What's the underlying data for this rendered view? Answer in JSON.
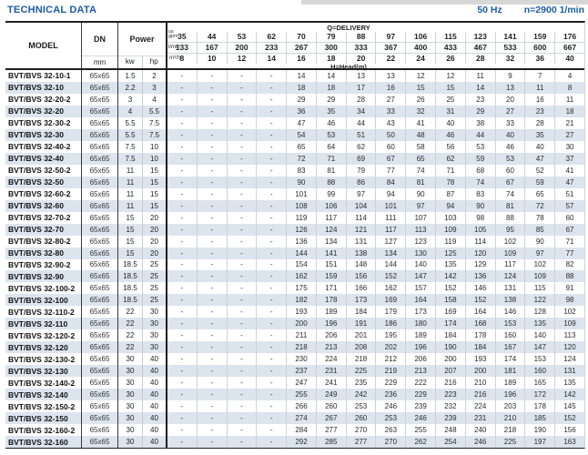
{
  "page": {
    "title": "TECHNICAL DATA",
    "frequency": "50 Hz",
    "speed": "n=2900 1/min"
  },
  "table": {
    "headers": {
      "model": "MODEL",
      "dn": "DN",
      "dn_unit": "mm",
      "power": "Power",
      "kw_unit": "kw",
      "hp_unit": "hp",
      "delivery_title": "Q=DELIVERY",
      "head_title": "H=Head(m)",
      "unit_gpm": "us\ngpm",
      "unit_lmin": "l/min",
      "unit_m3h": "m³/h",
      "gpm": [
        "35",
        "44",
        "53",
        "62",
        "70",
        "79",
        "88",
        "97",
        "106",
        "115",
        "123",
        "141",
        "159",
        "176"
      ],
      "lmin": [
        "133",
        "167",
        "200",
        "233",
        "267",
        "300",
        "333",
        "367",
        "400",
        "433",
        "467",
        "533",
        "600",
        "667"
      ],
      "m3h": [
        "8",
        "10",
        "12",
        "14",
        "16",
        "18",
        "20",
        "22",
        "24",
        "26",
        "28",
        "32",
        "36",
        "40"
      ]
    },
    "rows": [
      {
        "model": "BVT/BVS 32-10-1",
        "dn": "65x65",
        "kw": "1.5",
        "hp": "2",
        "head": [
          "-",
          "-",
          "-",
          "-",
          "14",
          "14",
          "13",
          "13",
          "12",
          "12",
          "11",
          "9",
          "7",
          "4"
        ]
      },
      {
        "model": "BVT/BVS 32-10",
        "dn": "65x65",
        "kw": "2.2",
        "hp": "3",
        "head": [
          "-",
          "-",
          "-",
          "-",
          "18",
          "18",
          "17",
          "16",
          "15",
          "15",
          "14",
          "13",
          "11",
          "8"
        ]
      },
      {
        "model": "BVT/BVS 32-20-2",
        "dn": "65x65",
        "kw": "3",
        "hp": "4",
        "head": [
          "-",
          "-",
          "-",
          "-",
          "29",
          "29",
          "28",
          "27",
          "26",
          "25",
          "23",
          "20",
          "16",
          "11"
        ]
      },
      {
        "model": "BVT/BVS 32-20",
        "dn": "65x65",
        "kw": "4",
        "hp": "5.5",
        "head": [
          "-",
          "-",
          "-",
          "-",
          "36",
          "35",
          "34",
          "33",
          "32",
          "31",
          "29",
          "27",
          "23",
          "18"
        ]
      },
      {
        "model": "BVT/BVS 32-30-2",
        "dn": "65x65",
        "kw": "5.5",
        "hp": "7.5",
        "head": [
          "-",
          "-",
          "-",
          "-",
          "47",
          "46",
          "44",
          "43",
          "41",
          "40",
          "38",
          "33",
          "28",
          "21"
        ]
      },
      {
        "model": "BVT/BVS 32-30",
        "dn": "65x65",
        "kw": "5.5",
        "hp": "7.5",
        "head": [
          "-",
          "-",
          "-",
          "-",
          "54",
          "53",
          "51",
          "50",
          "48",
          "46",
          "44",
          "40",
          "35",
          "27"
        ]
      },
      {
        "model": "BVT/BVS 32-40-2",
        "dn": "65x65",
        "kw": "7.5",
        "hp": "10",
        "head": [
          "-",
          "-",
          "-",
          "-",
          "65",
          "64",
          "62",
          "60",
          "58",
          "56",
          "53",
          "46",
          "40",
          "30"
        ]
      },
      {
        "model": "BVT/BVS 32-40",
        "dn": "65x65",
        "kw": "7.5",
        "hp": "10",
        "head": [
          "-",
          "-",
          "-",
          "-",
          "72",
          "71",
          "69",
          "67",
          "65",
          "62",
          "59",
          "53",
          "47",
          "37"
        ]
      },
      {
        "model": "BVT/BVS 32-50-2",
        "dn": "65x65",
        "kw": "11",
        "hp": "15",
        "head": [
          "-",
          "-",
          "-",
          "-",
          "83",
          "81",
          "79",
          "77",
          "74",
          "71",
          "68",
          "60",
          "52",
          "41"
        ]
      },
      {
        "model": "BVT/BVS 32-50",
        "dn": "65x65",
        "kw": "11",
        "hp": "15",
        "head": [
          "-",
          "-",
          "-",
          "-",
          "90",
          "88",
          "86",
          "84",
          "81",
          "78",
          "74",
          "67",
          "59",
          "47"
        ]
      },
      {
        "model": "BVT/BVS 32-60-2",
        "dn": "65x65",
        "kw": "11",
        "hp": "15",
        "head": [
          "-",
          "-",
          "-",
          "-",
          "101",
          "99",
          "97",
          "94",
          "90",
          "87",
          "83",
          "74",
          "65",
          "51"
        ]
      },
      {
        "model": "BVT/BVS 32-60",
        "dn": "65x65",
        "kw": "11",
        "hp": "15",
        "head": [
          "-",
          "-",
          "-",
          "-",
          "108",
          "106",
          "104",
          "101",
          "97",
          "94",
          "90",
          "81",
          "72",
          "57"
        ]
      },
      {
        "model": "BVT/BVS 32-70-2",
        "dn": "65x65",
        "kw": "15",
        "hp": "20",
        "head": [
          "-",
          "-",
          "-",
          "-",
          "119",
          "117",
          "114",
          "111",
          "107",
          "103",
          "98",
          "88",
          "78",
          "60"
        ]
      },
      {
        "model": "BVT/BVS 32-70",
        "dn": "65x65",
        "kw": "15",
        "hp": "20",
        "head": [
          "-",
          "-",
          "-",
          "-",
          "126",
          "124",
          "121",
          "117",
          "113",
          "109",
          "105",
          "95",
          "85",
          "67"
        ]
      },
      {
        "model": "BVT/BVS 32-80-2",
        "dn": "65x65",
        "kw": "15",
        "hp": "20",
        "head": [
          "-",
          "-",
          "-",
          "-",
          "136",
          "134",
          "131",
          "127",
          "123",
          "119",
          "114",
          "102",
          "90",
          "71"
        ]
      },
      {
        "model": "BVT/BVS 32-80",
        "dn": "65x65",
        "kw": "15",
        "hp": "20",
        "head": [
          "-",
          "-",
          "-",
          "-",
          "144",
          "141",
          "138",
          "134",
          "130",
          "125",
          "120",
          "109",
          "97",
          "77"
        ]
      },
      {
        "model": "BVT/BVS 32-90-2",
        "dn": "65x65",
        "kw": "18.5",
        "hp": "25",
        "head": [
          "-",
          "-",
          "-",
          "-",
          "154",
          "151",
          "148",
          "144",
          "140",
          "135",
          "129",
          "117",
          "102",
          "82"
        ]
      },
      {
        "model": "BVT/BVS 32-90",
        "dn": "65x65",
        "kw": "18.5",
        "hp": "25",
        "head": [
          "-",
          "-",
          "-",
          "-",
          "162",
          "159",
          "156",
          "152",
          "147",
          "142",
          "136",
          "124",
          "109",
          "88"
        ]
      },
      {
        "model": "BVT/BVS 32-100-2",
        "dn": "65x65",
        "kw": "18.5",
        "hp": "25",
        "head": [
          "-",
          "-",
          "-",
          "-",
          "175",
          "171",
          "166",
          "162",
          "157",
          "152",
          "146",
          "131",
          "115",
          "91"
        ]
      },
      {
        "model": "BVT/BVS 32-100",
        "dn": "65x65",
        "kw": "18.5",
        "hp": "25",
        "head": [
          "-",
          "-",
          "-",
          "-",
          "182",
          "178",
          "173",
          "169",
          "164",
          "158",
          "152",
          "138",
          "122",
          "98"
        ]
      },
      {
        "model": "BVT/BVS 32-110-2",
        "dn": "65x65",
        "kw": "22",
        "hp": "30",
        "head": [
          "-",
          "-",
          "-",
          "-",
          "193",
          "189",
          "184",
          "179",
          "173",
          "169",
          "164",
          "146",
          "128",
          "102"
        ]
      },
      {
        "model": "BVT/BVS 32-110",
        "dn": "65x65",
        "kw": "22",
        "hp": "30",
        "head": [
          "-",
          "-",
          "-",
          "-",
          "200",
          "196",
          "191",
          "186",
          "180",
          "174",
          "168",
          "153",
          "135",
          "109"
        ]
      },
      {
        "model": "BVT/BVS 32-120-2",
        "dn": "65x65",
        "kw": "22",
        "hp": "30",
        "head": [
          "-",
          "-",
          "-",
          "-",
          "211",
          "206",
          "201",
          "195",
          "189",
          "184",
          "178",
          "160",
          "140",
          "113"
        ]
      },
      {
        "model": "BVT/BVS 32-120",
        "dn": "65x65",
        "kw": "22",
        "hp": "30",
        "head": [
          "-",
          "-",
          "-",
          "-",
          "218",
          "213",
          "208",
          "202",
          "196",
          "190",
          "184",
          "167",
          "147",
          "120"
        ]
      },
      {
        "model": "BVT/BVS 32-130-2",
        "dn": "65x65",
        "kw": "30",
        "hp": "40",
        "head": [
          "-",
          "-",
          "-",
          "-",
          "230",
          "224",
          "218",
          "212",
          "206",
          "200",
          "193",
          "174",
          "153",
          "124"
        ]
      },
      {
        "model": "BVT/BVS 32-130",
        "dn": "65x65",
        "kw": "30",
        "hp": "40",
        "head": [
          "-",
          "-",
          "-",
          "-",
          "237",
          "231",
          "225",
          "219",
          "213",
          "207",
          "200",
          "181",
          "160",
          "131"
        ]
      },
      {
        "model": "BVT/BVS 32-140-2",
        "dn": "65x65",
        "kw": "30",
        "hp": "40",
        "head": [
          "-",
          "-",
          "-",
          "-",
          "247",
          "241",
          "235",
          "229",
          "222",
          "216",
          "210",
          "189",
          "165",
          "135"
        ]
      },
      {
        "model": "BVT/BVS 32-140",
        "dn": "65x65",
        "kw": "30",
        "hp": "40",
        "head": [
          "-",
          "-",
          "-",
          "-",
          "255",
          "249",
          "242",
          "236",
          "229",
          "223",
          "216",
          "196",
          "172",
          "142"
        ]
      },
      {
        "model": "BVT/BVS 32-150-2",
        "dn": "65x65",
        "kw": "30",
        "hp": "40",
        "head": [
          "-",
          "-",
          "-",
          "-",
          "266",
          "260",
          "253",
          "246",
          "239",
          "232",
          "224",
          "203",
          "178",
          "145"
        ]
      },
      {
        "model": "BVT/BVS 32-150",
        "dn": "65x65",
        "kw": "30",
        "hp": "40",
        "head": [
          "-",
          "-",
          "-",
          "-",
          "274",
          "267",
          "260",
          "253",
          "246",
          "239",
          "231",
          "210",
          "185",
          "152"
        ]
      },
      {
        "model": "BVT/BVS 32-160-2",
        "dn": "65x65",
        "kw": "30",
        "hp": "40",
        "head": [
          "-",
          "-",
          "-",
          "-",
          "284",
          "277",
          "270",
          "263",
          "255",
          "248",
          "240",
          "218",
          "190",
          "156"
        ]
      },
      {
        "model": "BVT/BVS 32-160",
        "dn": "65x65",
        "kw": "30",
        "hp": "40",
        "head": [
          "-",
          "-",
          "-",
          "-",
          "292",
          "285",
          "277",
          "270",
          "262",
          "254",
          "246",
          "225",
          "197",
          "163"
        ]
      }
    ]
  }
}
